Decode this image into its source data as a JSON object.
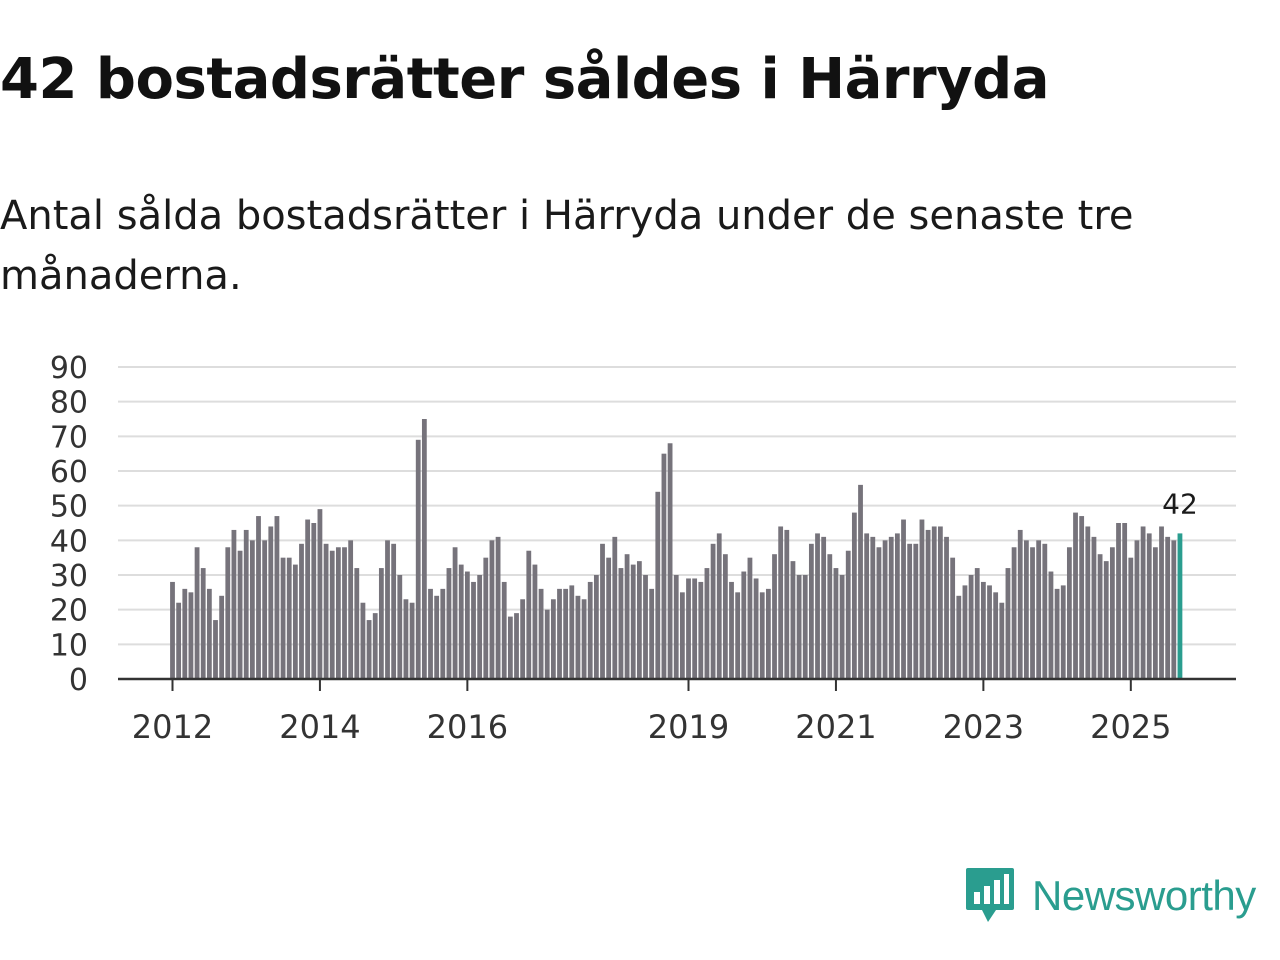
{
  "title": "42 bostadsrätter såldes i Härryda",
  "subtitle": "Antal sålda bostadsrätter i Härryda under de senaste tre månaderna.",
  "brand": {
    "name": "Newsworthy",
    "icon": "newsworthy-logo-icon"
  },
  "colors": {
    "bar": "#76737b",
    "highlight": "#2a9d8f",
    "grid": "#dddddd",
    "axis": "#333333",
    "brand": "#2a9d8f"
  },
  "chart_data": {
    "type": "bar",
    "title": "42 bostadsrätter såldes i Härryda",
    "xlabel": "",
    "ylabel": "",
    "ylim": [
      0,
      90
    ],
    "yticks": [
      0,
      10,
      20,
      30,
      40,
      50,
      60,
      70,
      80,
      90
    ],
    "start": "2012-01",
    "frequency": "monthly",
    "xtick_labels": [
      {
        "label": "2012",
        "index": 0
      },
      {
        "label": "2014",
        "index": 24
      },
      {
        "label": "2016",
        "index": 48
      },
      {
        "label": "2019",
        "index": 84
      },
      {
        "label": "2021",
        "index": 108
      },
      {
        "label": "2023",
        "index": 132
      },
      {
        "label": "2025",
        "index": 156
      }
    ],
    "values": [
      28,
      22,
      26,
      25,
      38,
      32,
      26,
      17,
      24,
      38,
      43,
      37,
      43,
      40,
      47,
      40,
      44,
      47,
      35,
      35,
      33,
      39,
      46,
      45,
      49,
      39,
      37,
      38,
      38,
      40,
      32,
      22,
      17,
      19,
      32,
      40,
      39,
      30,
      23,
      22,
      69,
      75,
      26,
      24,
      26,
      32,
      38,
      33,
      31,
      28,
      30,
      35,
      40,
      41,
      28,
      18,
      19,
      23,
      37,
      33,
      26,
      20,
      23,
      26,
      26,
      27,
      24,
      23,
      28,
      30,
      39,
      35,
      41,
      32,
      36,
      33,
      34,
      30,
      26,
      54,
      65,
      68,
      30,
      25,
      29,
      29,
      28,
      32,
      39,
      42,
      36,
      28,
      25,
      31,
      35,
      29,
      25,
      26,
      36,
      44,
      43,
      34,
      30,
      30,
      39,
      42,
      41,
      36,
      32,
      30,
      37,
      48,
      56,
      42,
      41,
      38,
      40,
      41,
      42,
      46,
      39,
      39,
      46,
      43,
      44,
      44,
      41,
      35,
      24,
      27,
      30,
      32,
      28,
      27,
      25,
      22,
      32,
      38,
      43,
      40,
      38,
      40,
      39,
      31,
      26,
      27,
      38,
      48,
      47,
      44,
      41,
      36,
      34,
      38,
      45,
      45,
      35,
      40,
      44,
      42,
      38,
      44,
      41,
      40,
      42
    ],
    "highlight_label": "42"
  }
}
